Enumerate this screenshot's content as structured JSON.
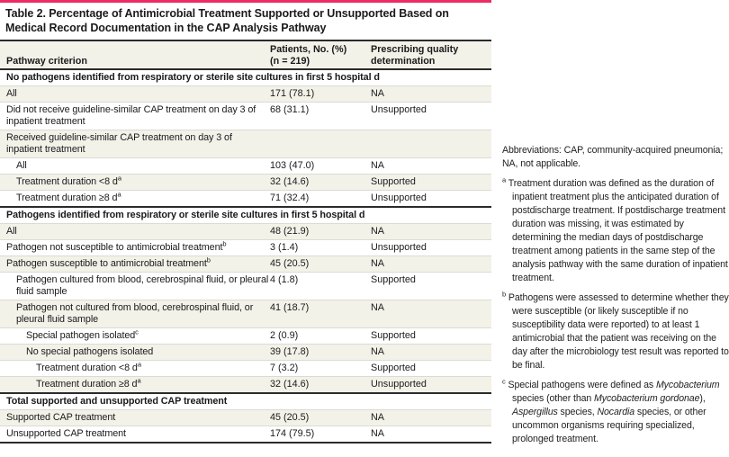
{
  "title": "Table 2. Percentage of Antimicrobial Treatment Supported or Unsupported Based on Medical Record Documentation in the CAP Analysis Pathway",
  "columns": {
    "criterion": "Pathway criterion",
    "patients_line1": "Patients, No. (%)",
    "patients_line2": "(n = 219)",
    "quality_line1": "Prescribing quality",
    "quality_line2": "determination"
  },
  "colors": {
    "accent_rule": "#ed2c63",
    "dark_rule": "#2b2b2b",
    "thin_rule": "#dcdbd3",
    "stripe_beige": "#f3f2e9"
  },
  "sections": [
    {
      "header": "No pathogens identified from respiratory or sterile site cultures in first 5 hospital d",
      "rows": [
        {
          "criterion": "All",
          "sup": "",
          "indent": 0,
          "patients": "171 (78.1)",
          "quality": "NA"
        },
        {
          "criterion": "Did not receive guideline-similar CAP treatment on day 3 of inpatient treatment",
          "sup": "",
          "indent": 0,
          "patients": "68 (31.1)",
          "quality": "Unsupported"
        },
        {
          "criterion": "Received guideline-similar CAP treatment on day 3 of inpatient treatment",
          "sup": "",
          "indent": 0,
          "patients": "",
          "quality": ""
        },
        {
          "criterion": "All",
          "sup": "",
          "indent": 1,
          "patients": "103 (47.0)",
          "quality": "NA"
        },
        {
          "criterion": "Treatment duration <8 d",
          "sup": "a",
          "indent": 1,
          "patients": "32 (14.6)",
          "quality": "Supported"
        },
        {
          "criterion": "Treatment duration ≥8 d",
          "sup": "a",
          "indent": 1,
          "patients": "71 (32.4)",
          "quality": "Unsupported"
        }
      ]
    },
    {
      "header": "Pathogens identified from respiratory or sterile site cultures in first 5 hospital d",
      "rows": [
        {
          "criterion": "All",
          "sup": "",
          "indent": 0,
          "patients": "48 (21.9)",
          "quality": "NA"
        },
        {
          "criterion": "Pathogen not susceptible to antimicrobial treatment",
          "sup": "b",
          "indent": 0,
          "patients": "3 (1.4)",
          "quality": "Unsupported"
        },
        {
          "criterion": "Pathogen susceptible to antimicrobial treatment",
          "sup": "b",
          "indent": 0,
          "patients": "45 (20.5)",
          "quality": "NA"
        },
        {
          "criterion": "Pathogen cultured from blood, cerebrospinal fluid, or pleural fluid sample",
          "sup": "",
          "indent": 1,
          "patients": "4 (1.8)",
          "quality": "Supported"
        },
        {
          "criterion": "Pathogen not cultured from blood, cerebrospinal fluid, or pleural fluid sample",
          "sup": "",
          "indent": 1,
          "patients": "41 (18.7)",
          "quality": "NA"
        },
        {
          "criterion": "Special pathogen isolated",
          "sup": "c",
          "indent": 2,
          "patients": "2 (0.9)",
          "quality": "Supported"
        },
        {
          "criterion": "No special pathogens isolated",
          "sup": "",
          "indent": 2,
          "patients": "39 (17.8)",
          "quality": "NA"
        },
        {
          "criterion": "Treatment duration <8 d",
          "sup": "a",
          "indent": 3,
          "patients": "7 (3.2)",
          "quality": "Supported"
        },
        {
          "criterion": "Treatment duration ≥8 d",
          "sup": "a",
          "indent": 3,
          "patients": "32 (14.6)",
          "quality": "Unsupported"
        }
      ]
    },
    {
      "header": "Total supported and unsupported CAP treatment",
      "rows": [
        {
          "criterion": "Supported CAP treatment",
          "sup": "",
          "indent": 0,
          "patients": "45 (20.5)",
          "quality": "NA"
        },
        {
          "criterion": "Unsupported CAP treatment",
          "sup": "",
          "indent": 0,
          "patients": "174 (79.5)",
          "quality": "NA"
        }
      ]
    }
  ],
  "footnotes": {
    "abbreviations": "Abbreviations: CAP, community-acquired pneumonia; NA, not applicable.",
    "items": [
      {
        "marker": "a",
        "segments": [
          {
            "text": "Treatment duration was defined as the duration of inpatient treatment plus the anticipated duration of postdischarge treatment. If postdischarge treatment duration was missing, it was estimated by determining the median days of postdischarge treatment among patients in the same step of the analysis pathway with the same duration of inpatient treatment.",
            "italic": false
          }
        ]
      },
      {
        "marker": "b",
        "segments": [
          {
            "text": "Pathogens were assessed to determine whether they were susceptible (or likely susceptible if no susceptibility data were reported) to at least 1 antimicrobial that the patient was receiving on the day after the microbiology test result was reported to be final.",
            "italic": false
          }
        ]
      },
      {
        "marker": "c",
        "segments": [
          {
            "text": "Special pathogens were defined as ",
            "italic": false
          },
          {
            "text": "Mycobacterium",
            "italic": true
          },
          {
            "text": " species (other than ",
            "italic": false
          },
          {
            "text": "Mycobacterium gordonae",
            "italic": true
          },
          {
            "text": "), ",
            "italic": false
          },
          {
            "text": "Aspergillus",
            "italic": true
          },
          {
            "text": " species, ",
            "italic": false
          },
          {
            "text": "Nocardia",
            "italic": true
          },
          {
            "text": " species, or other uncommon organisms requiring specialized, prolonged treatment.",
            "italic": false
          }
        ]
      }
    ]
  }
}
